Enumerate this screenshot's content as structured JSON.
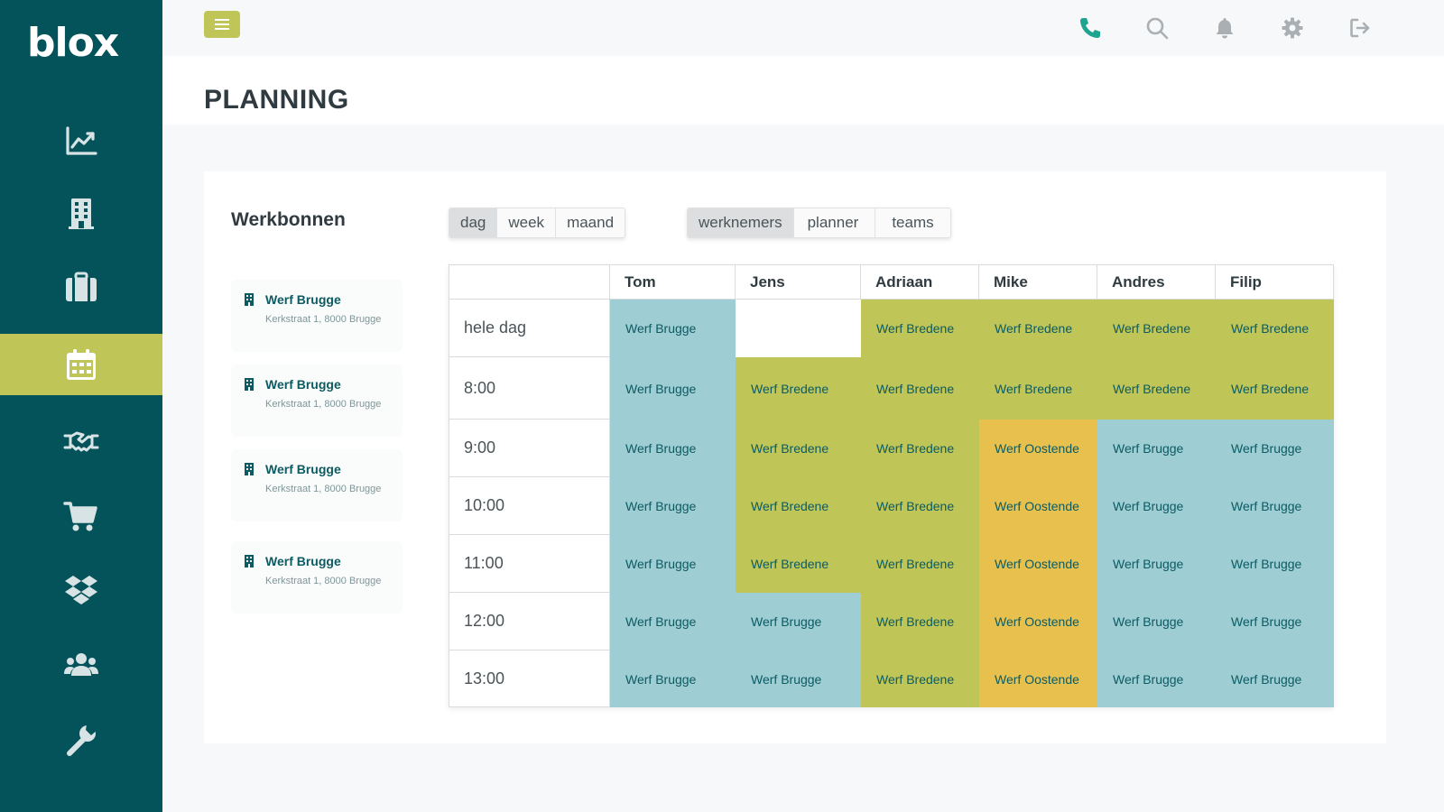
{
  "app": {
    "logo": "blox"
  },
  "colors": {
    "sidebar": "#04535a",
    "accent": "#bfc557",
    "brugge": "#9ecdd4",
    "bredene": "#bfc557",
    "oostende": "#e8c04d",
    "empty": "#ffffff",
    "link": "#0c5b62"
  },
  "sidebar": {
    "items": [
      {
        "icon": "chart-line-icon",
        "active": false
      },
      {
        "icon": "building-icon",
        "active": false
      },
      {
        "icon": "briefcase-icon",
        "active": false
      },
      {
        "icon": "calendar-icon",
        "active": true
      },
      {
        "icon": "handshake-icon",
        "active": false
      },
      {
        "icon": "cart-icon",
        "active": false
      },
      {
        "icon": "dropbox-icon",
        "active": false
      },
      {
        "icon": "users-icon",
        "active": false
      },
      {
        "icon": "wrench-icon",
        "active": false
      }
    ]
  },
  "topbar": {
    "icons": [
      "phone-icon",
      "search-icon",
      "bell-icon",
      "gear-icon",
      "logout-icon"
    ]
  },
  "page": {
    "title": "PLANNING"
  },
  "werkbonnen": {
    "title": "Werkbonnen",
    "items": [
      {
        "name": "Werf Brugge",
        "address": "Kerkstraat 1, 8000 Brugge"
      },
      {
        "name": "Werf Brugge",
        "address": "Kerkstraat 1, 8000 Brugge"
      },
      {
        "name": "Werf Brugge",
        "address": "Kerkstraat 1, 8000 Brugge"
      },
      {
        "name": "Werf Brugge",
        "address": "Kerkstraat 1, 8000 Brugge"
      }
    ]
  },
  "period_tabs": {
    "items": [
      "dag",
      "week",
      "maand"
    ],
    "active": "dag"
  },
  "view_tabs": {
    "items": [
      "werknemers",
      "planner",
      "teams"
    ],
    "active": "werknemers"
  },
  "schedule": {
    "employees": [
      "Tom",
      "Jens",
      "Adriaan",
      "Mike",
      "Andres",
      "Filip"
    ],
    "timeslots": [
      "hele dag",
      "8:00",
      "9:00",
      "10:00",
      "11:00",
      "12:00",
      "13:00"
    ],
    "assignments": {
      "Tom": [
        "Werf Brugge",
        "Werf Brugge",
        "Werf Brugge",
        "Werf Brugge",
        "Werf Brugge",
        "Werf Brugge",
        "Werf Brugge"
      ],
      "Jens": [
        "",
        "Werf Bredene",
        "Werf Bredene",
        "Werf Bredene",
        "Werf Bredene",
        "Werf Brugge",
        "Werf Brugge"
      ],
      "Adriaan": [
        "Werf Bredene",
        "Werf Bredene",
        "Werf Bredene",
        "Werf Bredene",
        "Werf Bredene",
        "Werf Bredene",
        "Werf Bredene"
      ],
      "Mike": [
        "Werf Bredene",
        "Werf Bredene",
        "Werf Oostende",
        "Werf Oostende",
        "Werf Oostende",
        "Werf Oostende",
        "Werf Oostende"
      ],
      "Andres": [
        "Werf Bredene",
        "Werf Bredene",
        "Werf Brugge",
        "Werf Brugge",
        "Werf Brugge",
        "Werf Brugge",
        "Werf Brugge"
      ],
      "Filip": [
        "Werf Bredene",
        "Werf Bredene",
        "Werf Brugge",
        "Werf Brugge",
        "Werf Brugge",
        "Werf Brugge",
        "Werf Brugge"
      ]
    }
  }
}
